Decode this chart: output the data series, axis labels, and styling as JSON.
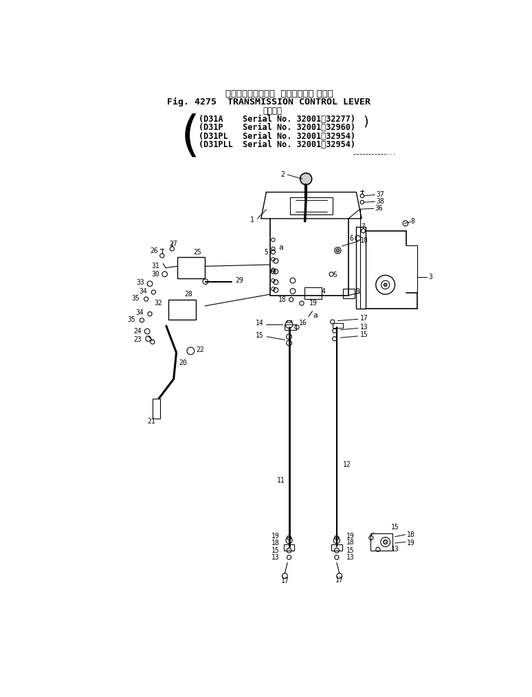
{
  "title_jp": "トランスミッション  コントロール レバー",
  "title_fig": "Fig. 4275  TRANSMISSION CONTROL LEVER",
  "subtitle_jp": "適用号機",
  "model1": "(D31A    Serial No. 32001～32277)",
  "model2": "(D31P    Serial No. 32001～32960)",
  "model3": "(D31PL   Serial No. 32001～32954)",
  "model4": "(D31PLL  Serial No. 32001～32954)",
  "bg_color": "#ffffff",
  "lc": "#000000",
  "fig_width": 7.74,
  "fig_height": 10.14,
  "dpi": 100
}
